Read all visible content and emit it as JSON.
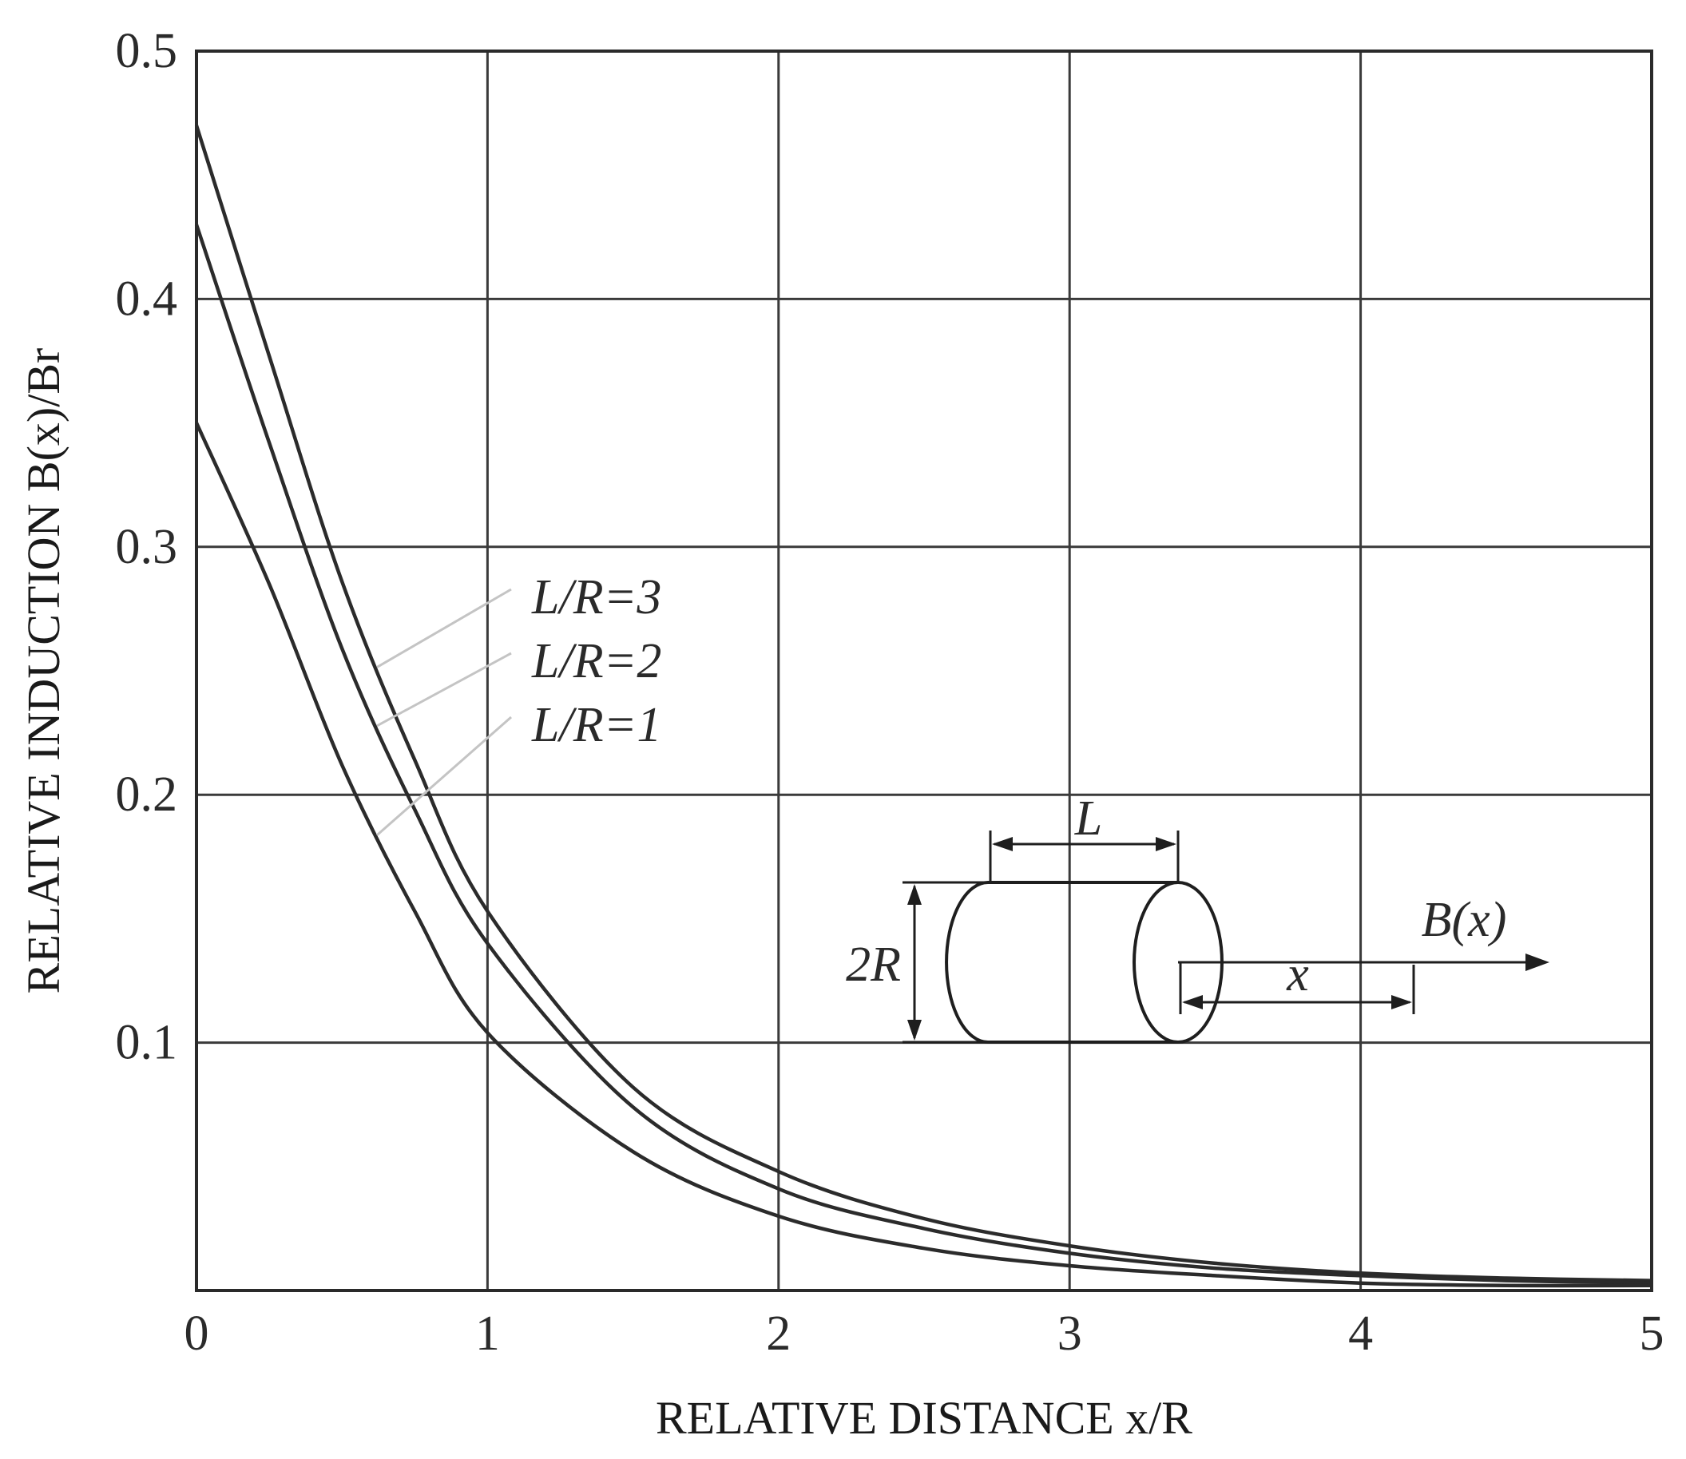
{
  "chart_data": {
    "type": "line",
    "xlabel": "RELATIVE DISTANCE x/R",
    "ylabel": "RELATIVE INDUCTION B(x)/Br",
    "xlim": [
      0,
      5
    ],
    "ylim": [
      0,
      0.5
    ],
    "x_ticks": [
      "0",
      "1",
      "2",
      "3",
      "4",
      "5"
    ],
    "y_ticks": [
      "0.1",
      "0.2",
      "0.3",
      "0.4",
      "0.5"
    ],
    "grid": true,
    "x": [
      0,
      0.25,
      0.5,
      0.75,
      1,
      1.5,
      2,
      2.5,
      3,
      3.5,
      4,
      4.5,
      5
    ],
    "series": [
      {
        "name": "L/R=3",
        "values": [
          0.47,
          0.377,
          0.286,
          0.214,
          0.153,
          0.082,
          0.048,
          0.029,
          0.018,
          0.011,
          0.007,
          0.005,
          0.004
        ]
      },
      {
        "name": "L/R=2",
        "values": [
          0.43,
          0.342,
          0.259,
          0.194,
          0.14,
          0.074,
          0.041,
          0.025,
          0.015,
          0.009,
          0.006,
          0.004,
          0.003
        ]
      },
      {
        "name": "L/R=1",
        "values": [
          0.35,
          0.285,
          0.212,
          0.153,
          0.104,
          0.056,
          0.03,
          0.017,
          0.01,
          0.006,
          0.003,
          0.002,
          0.002
        ]
      }
    ],
    "inset": {
      "length_label": "L",
      "diameter_label": "2R",
      "distance_label": "x",
      "field_label": "B(x)"
    }
  }
}
